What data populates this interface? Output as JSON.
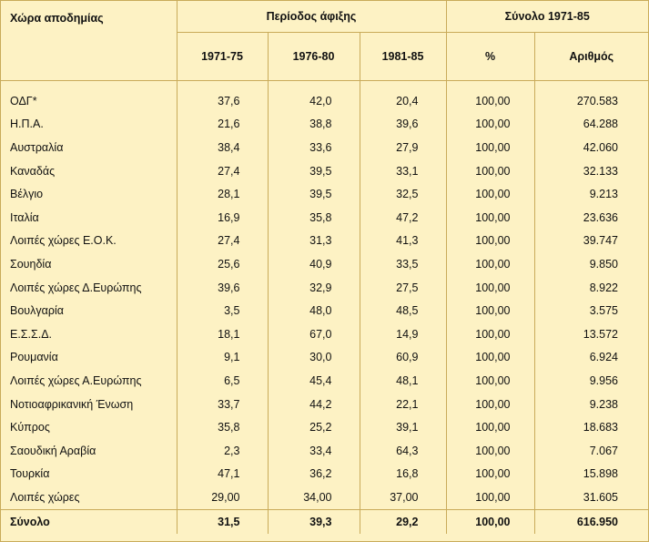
{
  "colors": {
    "background": "#fdf2c4",
    "rule": "#c9ab5a"
  },
  "header": {
    "country": "Χώρα αποδημίας",
    "period": "Περίοδος άφιξης",
    "total": "Σύνολο 1971-85",
    "periods": [
      "1971-75",
      "1976-80",
      "1981-85"
    ],
    "pct": "%",
    "count": "Αριθμός"
  },
  "rows": [
    {
      "country": "ΟΔΓ*",
      "p1": "37,6",
      "p2": "42,0",
      "p3": "20,4",
      "pct": "100,00",
      "count": "270.583"
    },
    {
      "country": "Η.Π.Α.",
      "p1": "21,6",
      "p2": "38,8",
      "p3": "39,6",
      "pct": "100,00",
      "count": "64.288"
    },
    {
      "country": "Αυστραλία",
      "p1": "38,4",
      "p2": "33,6",
      "p3": "27,9",
      "pct": "100,00",
      "count": "42.060"
    },
    {
      "country": "Καναδάς",
      "p1": "27,4",
      "p2": "39,5",
      "p3": "33,1",
      "pct": "100,00",
      "count": "32.133"
    },
    {
      "country": "Βέλγιο",
      "p1": "28,1",
      "p2": "39,5",
      "p3": "32,5",
      "pct": "100,00",
      "count": "9.213"
    },
    {
      "country": "Ιταλία",
      "p1": "16,9",
      "p2": "35,8",
      "p3": "47,2",
      "pct": "100,00",
      "count": "23.636"
    },
    {
      "country": "Λοιπές χώρες Ε.Ο.Κ.",
      "p1": "27,4",
      "p2": "31,3",
      "p3": "41,3",
      "pct": "100,00",
      "count": "39.747"
    },
    {
      "country": "Σουηδία",
      "p1": "25,6",
      "p2": "40,9",
      "p3": "33,5",
      "pct": "100,00",
      "count": "9.850"
    },
    {
      "country": "Λοιπές χώρες Δ.Ευρώπης",
      "p1": "39,6",
      "p2": "32,9",
      "p3": "27,5",
      "pct": "100,00",
      "count": "8.922"
    },
    {
      "country": "Βουλγαρία",
      "p1": "3,5",
      "p2": "48,0",
      "p3": "48,5",
      "pct": "100,00",
      "count": "3.575"
    },
    {
      "country": "Ε.Σ.Σ.Δ.",
      "p1": "18,1",
      "p2": "67,0",
      "p3": "14,9",
      "pct": "100,00",
      "count": "13.572"
    },
    {
      "country": "Ρουμανία",
      "p1": "9,1",
      "p2": "30,0",
      "p3": "60,9",
      "pct": "100,00",
      "count": "6.924"
    },
    {
      "country": "Λοιπές χώρες Α.Ευρώπης",
      "p1": "6,5",
      "p2": "45,4",
      "p3": "48,1",
      "pct": "100,00",
      "count": "9.956"
    },
    {
      "country": "Νοτιοαφρικανική Ένωση",
      "p1": "33,7",
      "p2": "44,2",
      "p3": "22,1",
      "pct": "100,00",
      "count": "9.238"
    },
    {
      "country": "Κύπρος",
      "p1": "35,8",
      "p2": "25,2",
      "p3": "39,1",
      "pct": "100,00",
      "count": "18.683"
    },
    {
      "country": "Σαουδική Αραβία",
      "p1": "2,3",
      "p2": "33,4",
      "p3": "64,3",
      "pct": "100,00",
      "count": "7.067"
    },
    {
      "country": "Τουρκία",
      "p1": "47,1",
      "p2": "36,2",
      "p3": "16,8",
      "pct": "100,00",
      "count": "15.898"
    },
    {
      "country": "Λοιπές χώρες",
      "p1": "29,00",
      "p2": "34,00",
      "p3": "37,00",
      "pct": "100,00",
      "count": "31.605"
    }
  ],
  "total": {
    "country": "Σύνολο",
    "p1": "31,5",
    "p2": "39,3",
    "p3": "29,2",
    "pct": "100,00",
    "count": "616.950"
  }
}
